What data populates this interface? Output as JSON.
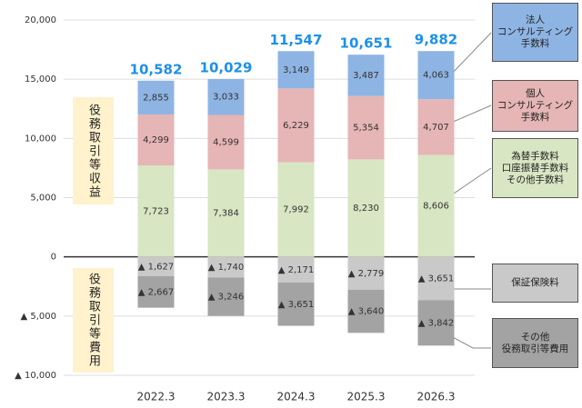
{
  "chart_data": {
    "type": "bar",
    "stacked": true,
    "categories": [
      "2022.3",
      "2023.3",
      "2024.3",
      "2025.3",
      "2026.3"
    ],
    "series": [
      {
        "name": "為替手数料\n口座振替手数料\nその他手数料",
        "color": "#d8e6c3",
        "values": [
          7723,
          7384,
          7992,
          8230,
          8606
        ],
        "value_labels": [
          "7,723",
          "7,384",
          "7,992",
          "8,230",
          "8,606"
        ]
      },
      {
        "name": "個人\nコンサルティング\n手数料",
        "color": "#e6b5b5",
        "values": [
          4299,
          4599,
          6229,
          5354,
          4707
        ],
        "value_labels": [
          "4,299",
          "4,599",
          "6,229",
          "5,354",
          "4,707"
        ]
      },
      {
        "name": "法人\nコンサルティング\n手数料",
        "color": "#8eb4e3",
        "values": [
          2855,
          3033,
          3149,
          3487,
          4063
        ],
        "value_labels": [
          "2,855",
          "3,033",
          "3,149",
          "3,487",
          "4,063"
        ]
      },
      {
        "name": "保証保険料",
        "color": "#c9c9c9",
        "values": [
          -1627,
          -1740,
          -2171,
          -2779,
          -3651
        ],
        "value_labels": [
          "▲ 1,627",
          "▲ 1,740",
          "▲ 2,171",
          "▲ 2,779",
          "▲ 3,651"
        ]
      },
      {
        "name": "その他\n役務取引等費用",
        "color": "#a3a3a3",
        "values": [
          -2667,
          -3246,
          -3651,
          -3640,
          -3842
        ],
        "value_labels": [
          "▲ 2,667",
          "▲ 3,246",
          "▲ 3,651",
          "▲ 3,640",
          "▲ 3,842"
        ]
      }
    ],
    "totals": [
      10582,
      10029,
      11547,
      10651,
      9882
    ],
    "total_labels": [
      "10,582",
      "10,029",
      "11,547",
      "10,651",
      "9,882"
    ],
    "side_labels": [
      "役務取引等収益",
      "役務取引等費用"
    ],
    "ylim": [
      -10000,
      20000
    ],
    "yticks": [
      {
        "value": -10000,
        "label": "▲ 10,000"
      },
      {
        "value": -5000,
        "label": "▲ 5,000"
      },
      0,
      {
        "value": 5000,
        "label": "5,000"
      },
      {
        "value": 10000,
        "label": "10,000"
      },
      {
        "value": 15000,
        "label": "15,000"
      },
      {
        "value": 20000,
        "label": "20,000"
      }
    ],
    "grid": true,
    "legend": "right"
  }
}
